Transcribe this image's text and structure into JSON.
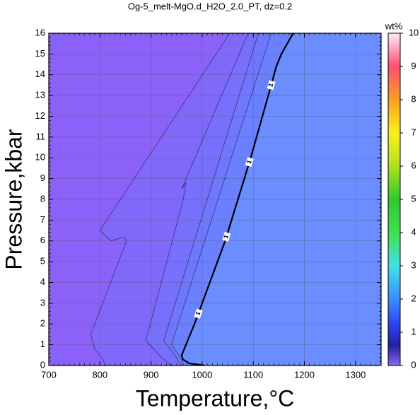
{
  "chart_data": {
    "type": "contour",
    "title": "Og-5_melt-MgO.d_H2O_2.0_PT, dz=0.2",
    "x_label": "Temperature,°C",
    "y_label": "Pressure,kbar",
    "xlim": [
      700,
      1350
    ],
    "ylim": [
      0,
      16
    ],
    "xticks": [
      700,
      800,
      900,
      1000,
      1100,
      1200,
      1300
    ],
    "yticks": [
      0,
      1,
      2,
      3,
      4,
      5,
      6,
      7,
      8,
      9,
      10,
      11,
      12,
      13,
      14,
      15,
      16
    ],
    "xminor": 10,
    "yminor": 0.2,
    "grid": true,
    "background_color": "#8b62f9",
    "contours": [
      {
        "level": 0.2,
        "color": "#8068fb",
        "labeled": false,
        "x": [
          1054,
          800,
          822,
          848,
          852,
          790,
          782,
          790,
          803,
          812
        ],
        "y": [
          16,
          6.5,
          6.0,
          6.2,
          6.0,
          2.0,
          1.5,
          0.8,
          0.4,
          0
        ]
      },
      {
        "level": 0.4,
        "color": "#7670fc",
        "labeled": false,
        "x": [
          1090,
          960,
          968,
          963,
          890,
          920,
          940
        ],
        "y": [
          16,
          8.5,
          8.8,
          8.0,
          1.2,
          0.4,
          0
        ]
      },
      {
        "level": 0.6,
        "color": "#6f77fd",
        "labeled": false,
        "x": [
          1110,
          925,
          952,
          958
        ],
        "y": [
          16,
          1.2,
          0.3,
          0
        ]
      },
      {
        "level": 0.8,
        "color": "#6b80fe",
        "labeled": false,
        "x": [
          1135,
          940,
          957,
          965
        ],
        "y": [
          16,
          1.0,
          0.4,
          0
        ]
      },
      {
        "level": 1,
        "color": "#6a8eff",
        "labeled": true,
        "x": [
          1178,
          1155,
          1145,
          1135,
          1095,
          1045,
          985,
          960,
          962,
          975,
          1005
        ],
        "y": [
          16,
          15,
          14.4,
          13.5,
          10,
          6,
          2,
          0.5,
          0.3,
          0.1,
          0
        ],
        "label_y": [
          2.5,
          6.2,
          9.8,
          13.5
        ]
      }
    ],
    "colorbar": {
      "label": "wt%",
      "lim": [
        0,
        10
      ],
      "ticks": [
        0,
        1,
        2,
        3,
        4,
        5,
        6,
        7,
        8,
        9,
        10
      ],
      "stops": [
        {
          "value": 0,
          "color": "#8468f4"
        },
        {
          "value": 0.6,
          "color": "#24209a"
        },
        {
          "value": 1.2,
          "color": "#2a40f0"
        },
        {
          "value": 2,
          "color": "#3a90ff"
        },
        {
          "value": 3,
          "color": "#40e0e8"
        },
        {
          "value": 4,
          "color": "#40e050"
        },
        {
          "value": 5,
          "color": "#30c830"
        },
        {
          "value": 6,
          "color": "#b0e020"
        },
        {
          "value": 7,
          "color": "#f8f020"
        },
        {
          "value": 8,
          "color": "#f8a020"
        },
        {
          "value": 9,
          "color": "#ff5070"
        },
        {
          "value": 10,
          "color": "#ffe8fa"
        }
      ]
    }
  }
}
